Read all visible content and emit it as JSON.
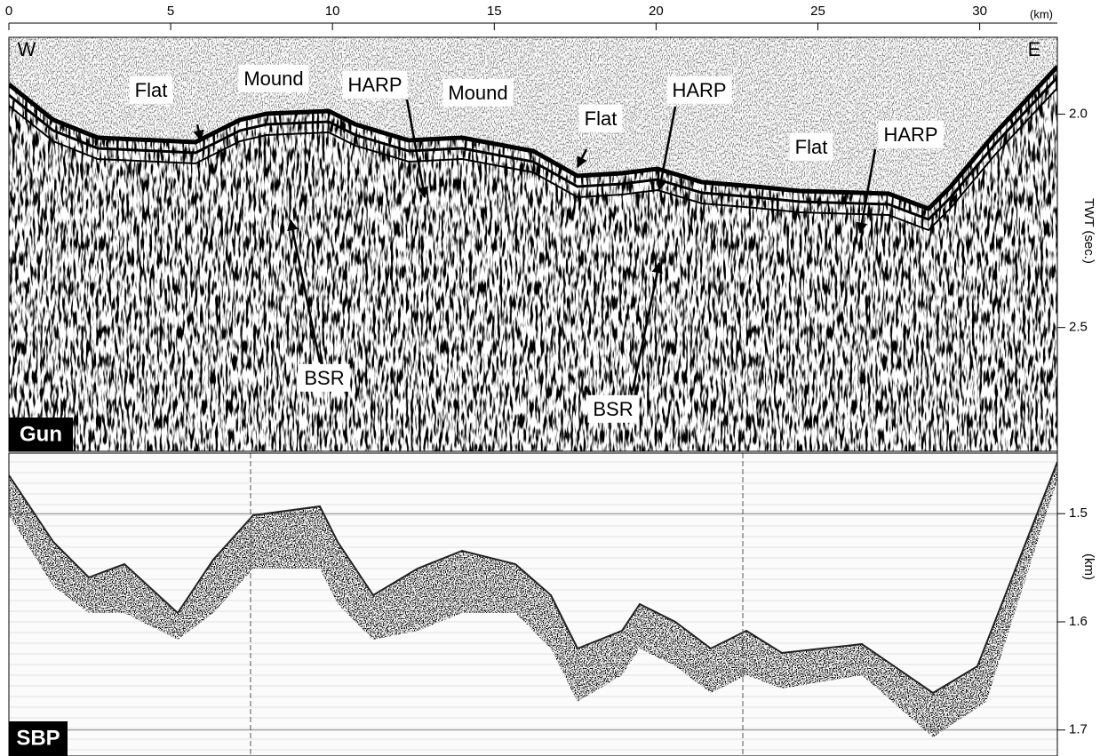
{
  "top_axis": {
    "unit": "(km)",
    "lim": [
      0,
      32.4
    ],
    "ticks": [
      0,
      5,
      10,
      15,
      20,
      25,
      30
    ]
  },
  "gun_panel": {
    "label": "Gun",
    "axis_label": "TWT (sec.)",
    "lim": [
      1.82,
      2.79
    ],
    "ticks": [
      {
        "value": 2,
        "label": "2.0"
      },
      2.5
    ],
    "annotations": [
      "W",
      "E",
      "Flat",
      "Mound",
      "HARP",
      "Mound",
      "Flat",
      "HARP",
      "Flat",
      "HARP",
      "BSR",
      "BSR"
    ]
  },
  "sbp_panel": {
    "label": "SBP",
    "axis_label": "(km)",
    "lim": [
      1.444,
      1.724
    ],
    "ticks": [
      1.5,
      1.6,
      1.7
    ]
  }
}
